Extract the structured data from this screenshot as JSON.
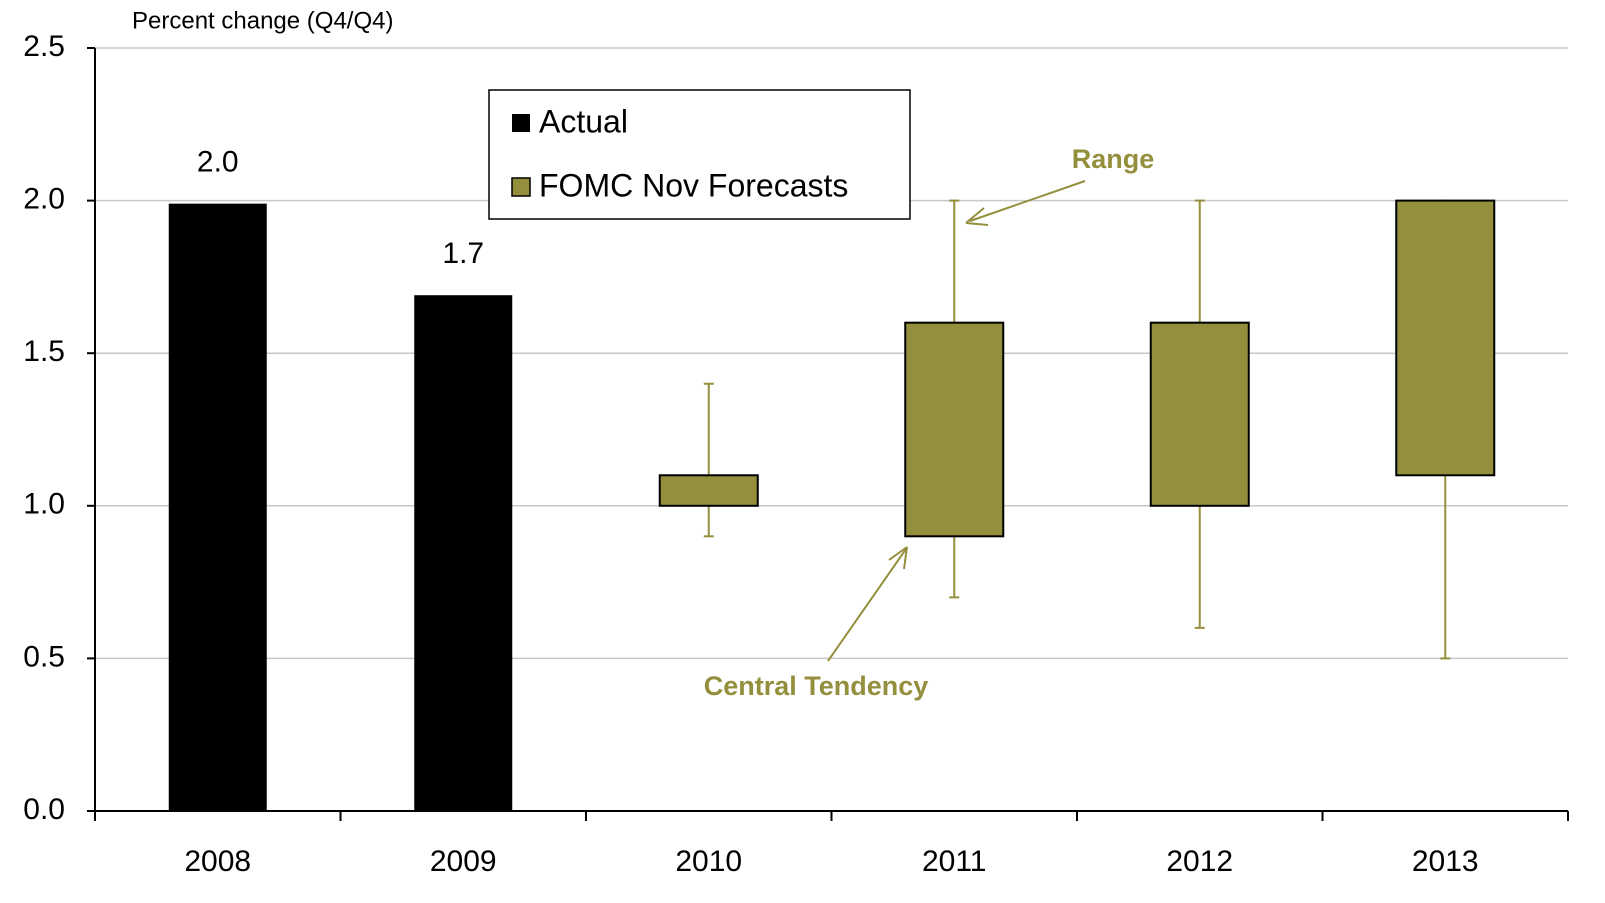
{
  "chart_data": {
    "type": "bar_range",
    "y_axis_label": "Percent change (Q4/Q4)",
    "categories": [
      "2008",
      "2009",
      "2010",
      "2011",
      "2012",
      "2013"
    ],
    "ylim": [
      0,
      2.5
    ],
    "yticks": [
      {
        "value": 0,
        "label": "0.0"
      },
      {
        "value": 0.5,
        "label": "0.5"
      },
      {
        "value": 1,
        "label": "1.0"
      },
      {
        "value": 1.5,
        "label": "1.5"
      },
      {
        "value": 2,
        "label": "2.0"
      },
      {
        "value": 2.5,
        "label": "2.5"
      }
    ],
    "grid": true,
    "series": [
      {
        "name": "Actual",
        "color": "#000000",
        "values": [
          1.99,
          1.69,
          null,
          null,
          null,
          null
        ],
        "value_labels": [
          "2.0",
          "1.7",
          null,
          null,
          null,
          null
        ]
      },
      {
        "name": "FOMC Nov Forecasts",
        "color": "#948f3d",
        "range_low": [
          null,
          null,
          0.9,
          0.7,
          0.6,
          0.5
        ],
        "range_high": [
          null,
          null,
          1.4,
          2.0,
          2.0,
          2.0
        ],
        "central_low": [
          null,
          null,
          1.0,
          0.9,
          1.0,
          1.1
        ],
        "central_high": [
          null,
          null,
          1.1,
          1.6,
          1.6,
          2.0
        ]
      }
    ],
    "annotations": [
      "Range",
      "Central Tendency"
    ]
  }
}
